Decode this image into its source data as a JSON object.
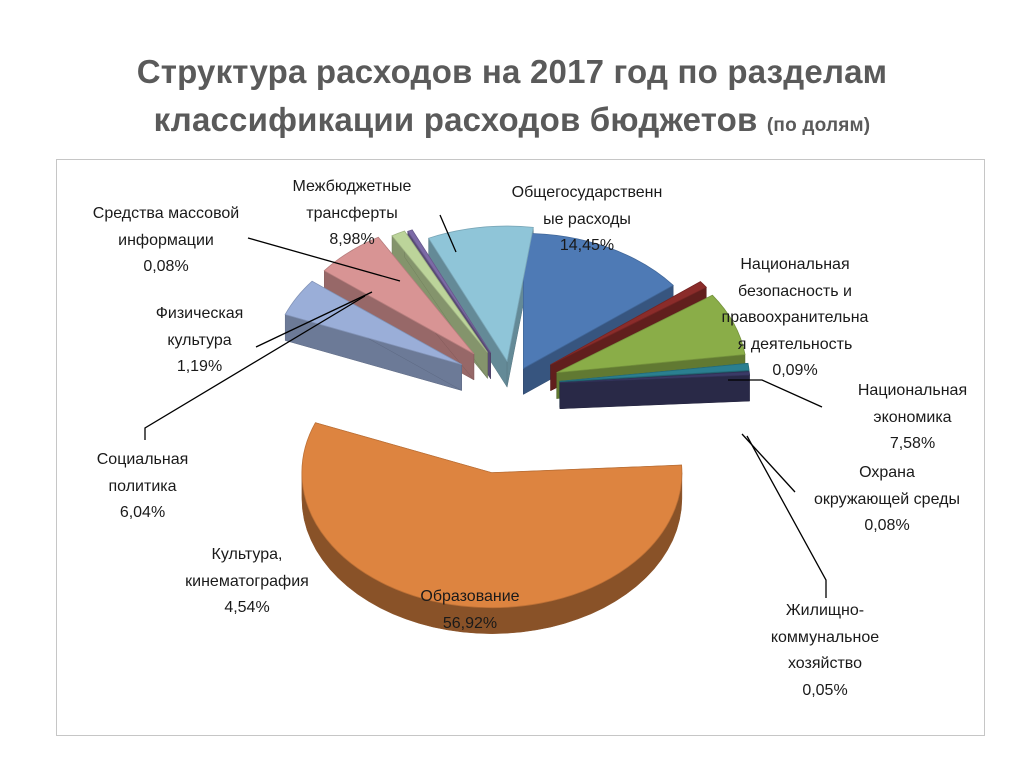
{
  "title": {
    "line1": "Структура расходов  на 2017  год по разделам",
    "line2": "классификации расходов бюджетов",
    "line2_sub": "(по долям)"
  },
  "chart_data": {
    "type": "pie",
    "slices": [
      {
        "name": "Общегосударственные расходы",
        "value": 14.45,
        "value_label": "14,45%",
        "color": "#4e7ab5",
        "label_lines": [
          "Общегосударственн",
          "ые расходы",
          "14,45%"
        ]
      },
      {
        "name": "Национальная безопасность и правоохранительная деятельность",
        "value": 0.09,
        "value_label": "0,09%",
        "color": "#8b2c2a",
        "label_lines": [
          "Национальная",
          "безопасность и",
          "правоохранительна",
          "я деятельность",
          "0,09%"
        ]
      },
      {
        "name": "Национальная экономика",
        "value": 7.58,
        "value_label": "7,58%",
        "color": "#8aad48",
        "label_lines": [
          "Национальная",
          "экономика",
          "7,58%"
        ]
      },
      {
        "name": "Охрана окружающей среды",
        "value": 0.08,
        "value_label": "0,08%",
        "color": "#2a7f90",
        "label_lines": [
          "Охрана",
          "окружающей среды",
          "0,08%"
        ]
      },
      {
        "name": "Жилищно-коммунальное хозяйство",
        "value": 0.05,
        "value_label": "0,05%",
        "color": "#3a3a66",
        "label_lines": [
          "Жилищно-",
          "коммунальное",
          "хозяйство",
          "0,05%"
        ]
      },
      {
        "name": "Образование",
        "value": 56.92,
        "value_label": "56,92%",
        "color": "#dd8440",
        "label_lines": [
          "Образование",
          "56,92%"
        ]
      },
      {
        "name": "Культура, кинематография",
        "value": 4.54,
        "value_label": "4,54%",
        "color": "#9aaed8",
        "label_lines": [
          "Культура,",
          "кинематография",
          "4,54%"
        ]
      },
      {
        "name": "Социальная политика",
        "value": 6.04,
        "value_label": "6,04%",
        "color": "#d89494",
        "label_lines": [
          "Социальная",
          "политика",
          "6,04%"
        ]
      },
      {
        "name": "Физическая культура",
        "value": 1.19,
        "value_label": "1,19%",
        "color": "#bcd49a",
        "label_lines": [
          "Физическая",
          "культура",
          "1,19%"
        ]
      },
      {
        "name": "Средства массовой информации",
        "value": 0.08,
        "value_label": "0,08%",
        "color": "#7c6aa6",
        "label_lines": [
          "Средства массовой",
          "информации",
          "0,08%"
        ]
      },
      {
        "name": "Межбюджетные трансферты",
        "value": 8.98,
        "value_label": "8,98%",
        "color": "#8fc5d8",
        "label_lines": [
          "Межбюджетные",
          "трансферты",
          "8,98%"
        ]
      }
    ]
  }
}
